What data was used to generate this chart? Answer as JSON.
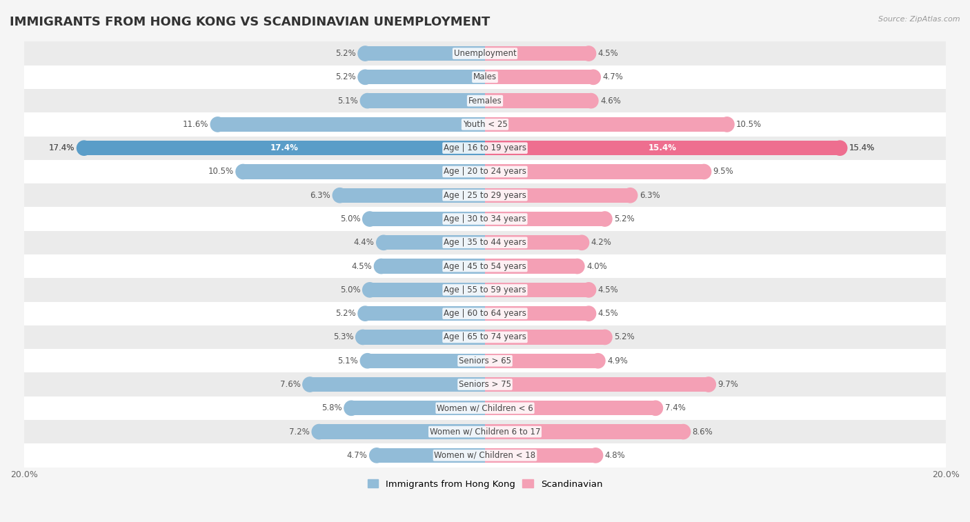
{
  "title": "IMMIGRANTS FROM HONG KONG VS SCANDINAVIAN UNEMPLOYMENT",
  "source": "Source: ZipAtlas.com",
  "categories": [
    "Unemployment",
    "Males",
    "Females",
    "Youth < 25",
    "Age | 16 to 19 years",
    "Age | 20 to 24 years",
    "Age | 25 to 29 years",
    "Age | 30 to 34 years",
    "Age | 35 to 44 years",
    "Age | 45 to 54 years",
    "Age | 55 to 59 years",
    "Age | 60 to 64 years",
    "Age | 65 to 74 years",
    "Seniors > 65",
    "Seniors > 75",
    "Women w/ Children < 6",
    "Women w/ Children 6 to 17",
    "Women w/ Children < 18"
  ],
  "hk_values": [
    5.2,
    5.2,
    5.1,
    11.6,
    17.4,
    10.5,
    6.3,
    5.0,
    4.4,
    4.5,
    5.0,
    5.2,
    5.3,
    5.1,
    7.6,
    5.8,
    7.2,
    4.7
  ],
  "sc_values": [
    4.5,
    4.7,
    4.6,
    10.5,
    15.4,
    9.5,
    6.3,
    5.2,
    4.2,
    4.0,
    4.5,
    4.5,
    5.2,
    4.9,
    9.7,
    7.4,
    8.6,
    4.8
  ],
  "hk_color": "#92bcd8",
  "sc_color": "#f4a0b5",
  "hk_color_highlight": "#5a9dc8",
  "sc_color_highlight": "#ee6e8f",
  "axis_limit": 20.0,
  "bg_color": "#f5f5f5",
  "row_color_odd": "#ffffff",
  "row_color_even": "#ebebeb",
  "highlight_idx": 4,
  "label_color": "#555555",
  "legend_hk": "Immigrants from Hong Kong",
  "legend_sc": "Scandinavian",
  "title_fontsize": 13,
  "label_fontsize": 8.5,
  "value_fontsize": 8.5
}
